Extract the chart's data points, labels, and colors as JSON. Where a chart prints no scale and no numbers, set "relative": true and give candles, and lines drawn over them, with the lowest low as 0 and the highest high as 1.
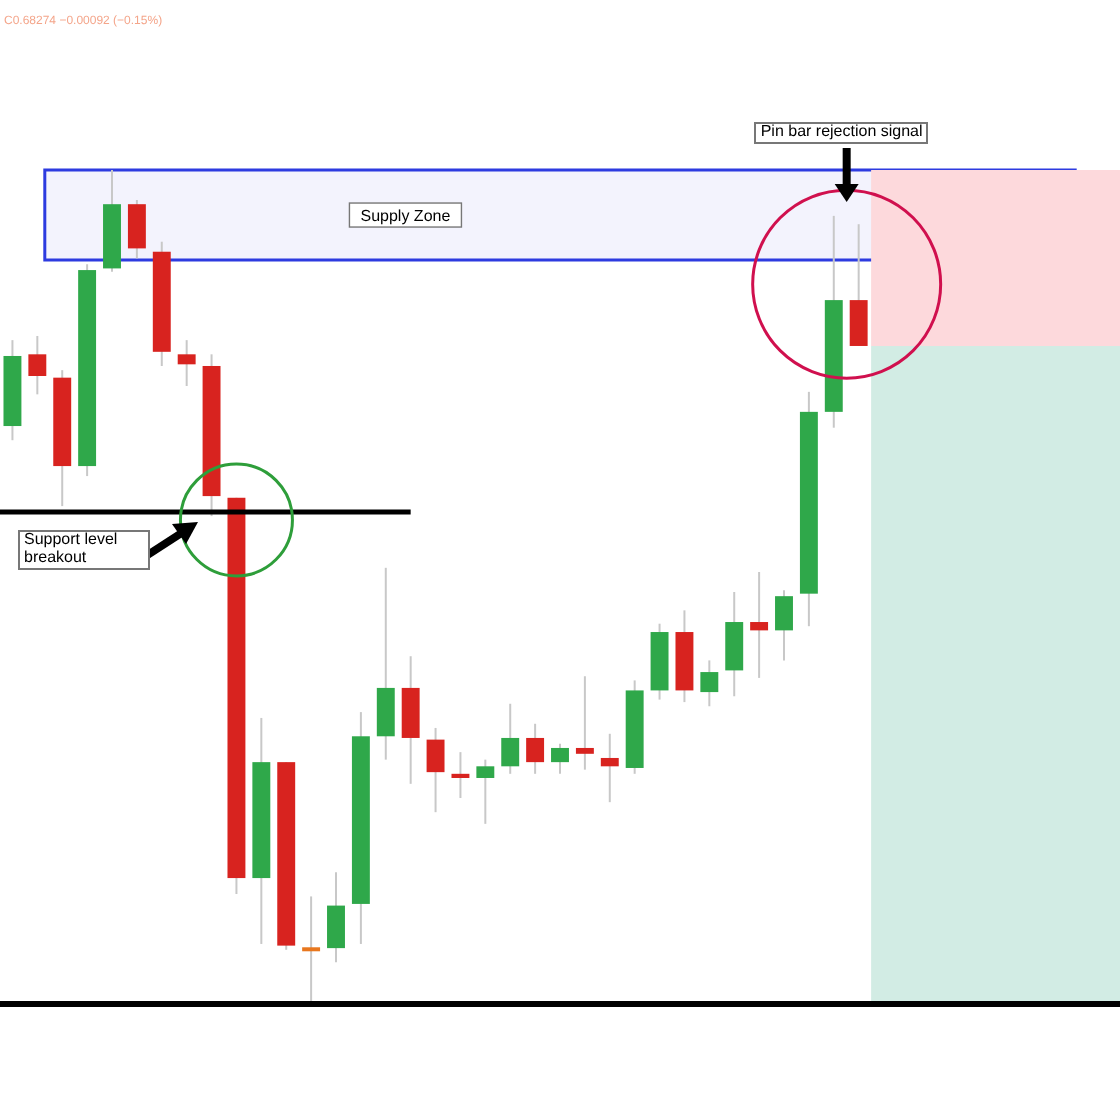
{
  "chart_data": {
    "type": "candlestick",
    "relative": true,
    "categories": [
      null,
      null,
      null,
      null,
      null,
      null,
      null,
      null,
      null,
      null,
      null,
      null,
      null,
      null,
      null,
      null,
      null,
      null,
      null,
      null,
      null,
      null,
      null,
      null,
      null,
      null,
      null,
      null,
      null,
      null,
      null,
      null,
      null,
      null,
      null,
      null,
      null,
      null,
      null,
      null,
      null,
      null,
      null,
      null,
      null
    ],
    "ohlc": [
      [
        0.693,
        0.796,
        0.676,
        0.777
      ],
      [
        0.779,
        0.801,
        0.731,
        0.753
      ],
      [
        0.751,
        0.76,
        0.597,
        0.645
      ],
      [
        0.645,
        0.887,
        0.633,
        0.88
      ],
      [
        0.882,
        1.0,
        0.878,
        0.959
      ],
      [
        0.959,
        0.964,
        0.894,
        0.906
      ],
      [
        0.902,
        0.914,
        0.765,
        0.782
      ],
      [
        0.779,
        0.796,
        0.741,
        0.767
      ],
      [
        0.765,
        0.779,
        0.585,
        0.609
      ],
      [
        0.607,
        0.607,
        0.132,
        0.151
      ],
      [
        0.151,
        0.343,
        0.072,
        0.29
      ],
      [
        0.29,
        0.29,
        0.065,
        0.07
      ],
      [
        0.068,
        0.129,
        0.0,
        0.065
      ],
      [
        0.067,
        0.158,
        0.05,
        0.118
      ],
      [
        0.12,
        0.35,
        0.072,
        0.321
      ],
      [
        0.321,
        0.523,
        0.293,
        0.379
      ],
      [
        0.379,
        0.417,
        0.264,
        0.319
      ],
      [
        0.317,
        0.331,
        0.23,
        0.278
      ],
      [
        0.276,
        0.302,
        0.247,
        0.271
      ],
      [
        0.271,
        0.293,
        0.216,
        0.285
      ],
      [
        0.285,
        0.36,
        0.276,
        0.319
      ],
      [
        0.319,
        0.336,
        0.276,
        0.29
      ],
      [
        0.29,
        0.312,
        0.276,
        0.307
      ],
      [
        0.307,
        0.393,
        0.281,
        0.3
      ],
      [
        0.295,
        0.324,
        0.242,
        0.285
      ],
      [
        0.283,
        0.388,
        0.276,
        0.376
      ],
      [
        0.376,
        0.456,
        0.365,
        0.446
      ],
      [
        0.446,
        0.472,
        0.362,
        0.376
      ],
      [
        0.374,
        0.412,
        0.357,
        0.398
      ],
      [
        0.4,
        0.494,
        0.369,
        0.458
      ],
      [
        0.458,
        0.518,
        0.391,
        0.448
      ],
      [
        0.448,
        0.496,
        0.412,
        0.489
      ],
      [
        0.492,
        0.734,
        0.453,
        0.71
      ],
      [
        0.71,
        0.945,
        0.691,
        0.844
      ],
      [
        0.844,
        0.935,
        0.789,
        0.789
      ],
      null,
      null,
      null,
      null,
      null,
      null,
      null,
      null,
      null,
      null
    ],
    "colors": [
      "#2fa84a",
      "#d8231f",
      "#d8231f",
      "#2fa84a",
      "#2fa84a",
      "#d8231f",
      "#d8231f",
      "#d8231f",
      "#d8231f",
      "#d8231f",
      "#2fa84a",
      "#d8231f",
      "#e8771e",
      "#2fa84a",
      "#2fa84a",
      "#2fa84a",
      "#d8231f",
      "#d8231f",
      "#d8231f",
      "#2fa84a",
      "#2fa84a",
      "#d8231f",
      "#2fa84a",
      "#d8231f",
      "#d8231f",
      "#2fa84a",
      "#2fa84a",
      "#d8231f",
      "#2fa84a",
      "#2fa84a",
      "#d8231f",
      "#2fa84a",
      "#2fa84a",
      "#2fa84a",
      "#d8231f",
      null,
      null,
      null,
      null,
      null,
      null,
      null,
      null,
      null,
      null
    ],
    "bands": [
      {
        "axis": "y",
        "from": 0.892,
        "to": 1.0,
        "label": "Supply Zone",
        "color": "#2d3be0"
      },
      {
        "axis": "y",
        "from": 0.789,
        "to": 1.0,
        "color": "#fdd9dc"
      },
      {
        "axis": "y",
        "from": 0.0,
        "to": 0.789,
        "color": "#d2ece4"
      }
    ],
    "ref_lines": [
      {
        "axis": "y",
        "value": 0.59,
        "color": "#000000"
      }
    ],
    "annotations": [
      "C0.68274 −0.00092 (−0.15%)",
      "Support level breakout",
      "Pin bar rejection signal"
    ]
  }
}
